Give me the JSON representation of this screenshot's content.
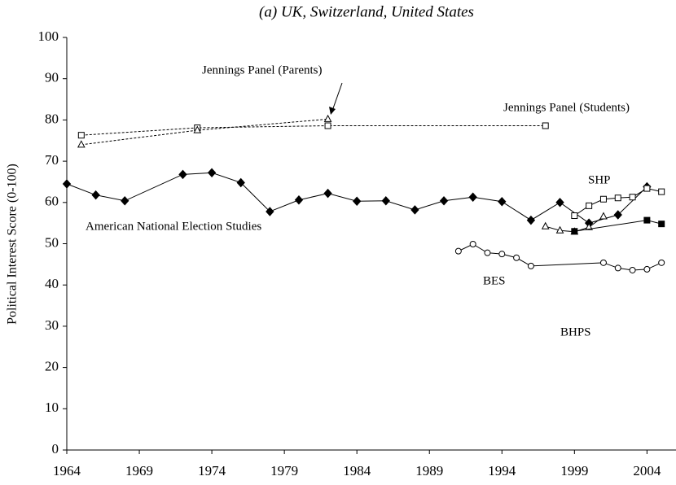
{
  "chart_data": {
    "type": "line",
    "title": "(a) UK, Switzerland, United States",
    "y_label": "Political Interest Score (0-100)",
    "xlim": [
      1964,
      2006
    ],
    "xticks": [
      1964,
      1969,
      1974,
      1979,
      1984,
      1989,
      1994,
      1999,
      2004
    ],
    "ylim": [
      0,
      100
    ],
    "yticks": [
      0,
      10,
      20,
      30,
      40,
      50,
      60,
      70,
      80,
      90,
      100
    ],
    "annotations": [
      "Jennings Panel (Parents)",
      "Jennings Panel (Students)",
      "SHP",
      "American National Election Studies",
      "BES",
      "BHPS"
    ],
    "series": [
      {
        "color": "#000000",
        "marker": "diamond",
        "filled": true,
        "dashed": false,
        "x": [
          1964,
          1966,
          1968,
          1972,
          1974,
          1976,
          1978,
          1980,
          1982,
          1984,
          1986,
          1988,
          1990,
          1992,
          1994,
          1996,
          1998,
          2000,
          2002,
          2004
        ],
        "values": [
          64.5,
          61.8,
          60.4,
          66.8,
          67.2,
          64.8,
          57.8,
          60.6,
          62.2,
          60.3,
          60.4,
          58.2,
          60.4,
          61.3,
          60.2,
          55.7,
          60,
          55,
          57,
          63.8
        ]
      },
      {
        "color": "#000000",
        "marker": "square",
        "filled": false,
        "dashed": true,
        "x": [
          1965,
          1973,
          1982,
          1997
        ],
        "values": [
          76.3,
          78.1,
          78.6,
          78.6
        ]
      },
      {
        "color": "#000000",
        "marker": "triangle",
        "filled": false,
        "dashed": true,
        "x": [
          1965,
          1973,
          1982
        ],
        "values": [
          74,
          77.5,
          80.2
        ]
      },
      {
        "color": "#000000",
        "marker": "square",
        "filled": false,
        "dashed": false,
        "x": [
          1999,
          2000,
          2001,
          2002,
          2003,
          2004,
          2005
        ],
        "values": [
          56.8,
          59.2,
          60.8,
          61.1,
          61.3,
          63.4,
          62.6
        ]
      },
      {
        "color": "#000000",
        "marker": "triangle",
        "filled": false,
        "dashed": false,
        "x": [
          1997,
          1998,
          1999,
          2000,
          2001
        ],
        "values": [
          54.2,
          53.2,
          52.9,
          54,
          56.6
        ]
      },
      {
        "color": "#000000",
        "marker": "square",
        "filled": true,
        "dashed": false,
        "x": [
          1999,
          2004,
          2005
        ],
        "values": [
          53,
          55.7,
          54.8
        ]
      },
      {
        "color": "#000000",
        "marker": "circle",
        "filled": false,
        "dashed": false,
        "x": [
          1991,
          1992,
          1993,
          1994,
          1995,
          1996,
          2001,
          2002,
          2003,
          2004,
          2005
        ],
        "values": [
          48.2,
          49.9,
          47.8,
          47.5,
          46.6,
          44.6,
          45.4,
          44.1,
          43.6,
          43.8,
          45.4
        ]
      }
    ]
  }
}
